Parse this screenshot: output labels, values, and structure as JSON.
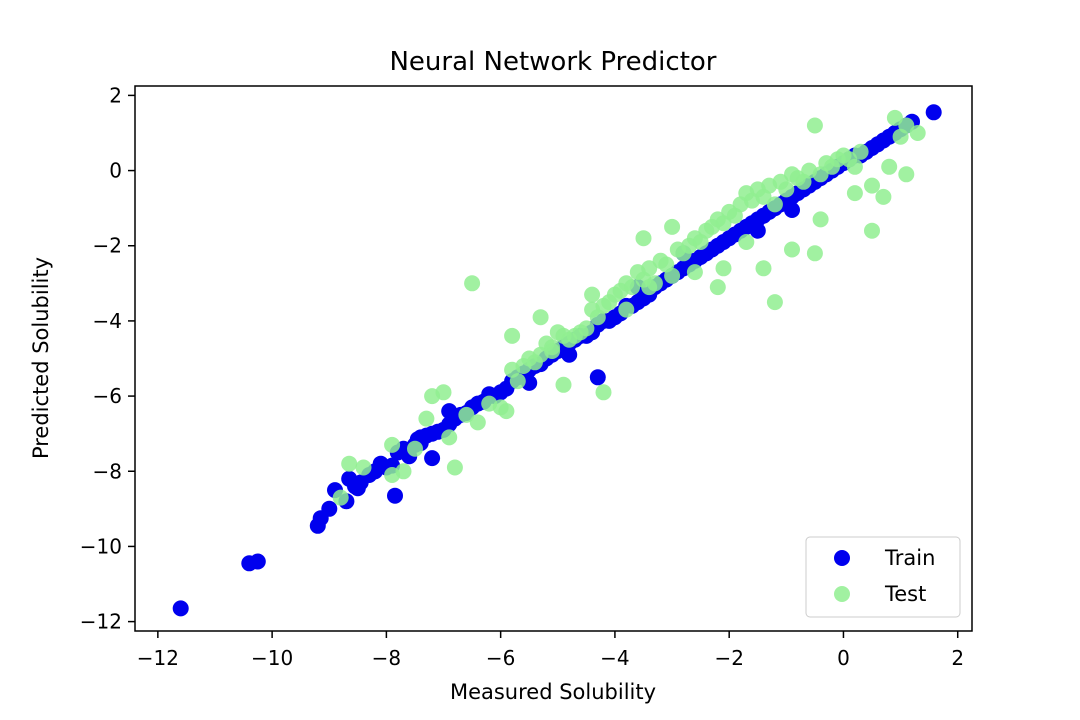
{
  "chart_data": {
    "type": "scatter",
    "title": "Neural Network Predictor",
    "xlabel": "Measured Solubility",
    "ylabel": "Predicted Solubility",
    "xlim": [
      -12.4,
      2.25
    ],
    "ylim": [
      -12.25,
      2.25
    ],
    "xticks": [
      -12,
      -10,
      -8,
      -6,
      -4,
      -2,
      0,
      2
    ],
    "yticks": [
      -12,
      -10,
      -8,
      -6,
      -4,
      -2,
      0,
      2
    ],
    "xtick_labels": [
      "−12",
      "−10",
      "−8",
      "−6",
      "−4",
      "−2",
      "0",
      "2"
    ],
    "ytick_labels": [
      "−12",
      "−10",
      "−8",
      "−6",
      "−4",
      "−2",
      "0",
      "2"
    ],
    "grid": false,
    "legend_position": "bottom-right",
    "series": [
      {
        "name": "Train",
        "color": "#0000ee",
        "x": [
          -11.6,
          -10.4,
          -10.25,
          -9.2,
          -9.15,
          -9.0,
          -8.9,
          -8.7,
          -8.65,
          -8.55,
          -8.5,
          -8.45,
          -8.3,
          -8.2,
          -8.1,
          -8.0,
          -7.9,
          -7.85,
          -7.8,
          -7.7,
          -7.6,
          -7.5,
          -7.45,
          -7.4,
          -7.3,
          -7.2,
          -7.1,
          -7.0,
          -6.9,
          -6.8,
          -6.7,
          -6.6,
          -6.5,
          -6.4,
          -6.3,
          -6.2,
          -6.1,
          -6.0,
          -5.9,
          -5.8,
          -5.7,
          -5.6,
          -5.5,
          -5.4,
          -5.3,
          -5.2,
          -5.1,
          -5.0,
          -4.9,
          -4.8,
          -4.7,
          -4.6,
          -4.5,
          -4.4,
          -4.3,
          -4.2,
          -4.1,
          -4.0,
          -3.9,
          -3.8,
          -3.7,
          -3.6,
          -3.5,
          -3.4,
          -3.3,
          -3.2,
          -3.1,
          -3.0,
          -2.9,
          -2.8,
          -2.7,
          -2.6,
          -2.5,
          -2.4,
          -2.3,
          -2.2,
          -2.1,
          -2.0,
          -1.9,
          -1.8,
          -1.7,
          -1.6,
          -1.5,
          -1.4,
          -1.3,
          -1.2,
          -1.1,
          -1.0,
          -0.9,
          -0.8,
          -0.7,
          -0.6,
          -0.5,
          -0.4,
          -0.3,
          -0.2,
          -0.1,
          0.0,
          0.1,
          0.2,
          0.3,
          0.4,
          0.5,
          0.6,
          0.7,
          0.8,
          0.9,
          1.0,
          1.1,
          1.2,
          1.58,
          -7.2,
          -6.9,
          -4.3,
          -3.6,
          -2.8,
          -4.8,
          -5.5,
          -1.5,
          -0.9,
          -7.4,
          -6.2
        ],
        "y": [
          -11.65,
          -10.45,
          -10.4,
          -9.45,
          -9.25,
          -9.0,
          -8.5,
          -8.8,
          -8.2,
          -8.4,
          -8.45,
          -8.3,
          -8.1,
          -8.0,
          -7.8,
          -7.9,
          -7.85,
          -8.65,
          -7.5,
          -7.4,
          -7.6,
          -7.3,
          -7.15,
          -7.1,
          -7.05,
          -7.0,
          -6.95,
          -6.9,
          -6.75,
          -6.6,
          -6.5,
          -6.45,
          -6.3,
          -6.2,
          -6.15,
          -6.0,
          -6.0,
          -5.9,
          -5.8,
          -5.6,
          -5.5,
          -5.4,
          -5.3,
          -5.2,
          -5.15,
          -5.0,
          -4.9,
          -4.8,
          -4.7,
          -4.6,
          -4.5,
          -4.4,
          -4.4,
          -4.3,
          -4.1,
          -4.0,
          -4.0,
          -3.9,
          -3.8,
          -3.6,
          -3.6,
          -3.5,
          -3.4,
          -3.3,
          -3.1,
          -3.0,
          -2.9,
          -2.8,
          -2.7,
          -2.6,
          -2.5,
          -2.4,
          -2.3,
          -2.2,
          -2.1,
          -2.0,
          -1.9,
          -1.8,
          -1.7,
          -1.6,
          -1.5,
          -1.4,
          -1.3,
          -1.2,
          -1.1,
          -1.0,
          -0.9,
          -0.8,
          -0.7,
          -0.6,
          -0.5,
          -0.4,
          -0.3,
          -0.2,
          -0.1,
          0.0,
          0.1,
          0.2,
          0.3,
          0.4,
          0.4,
          0.5,
          0.6,
          0.7,
          0.8,
          0.9,
          1.0,
          1.1,
          1.2,
          1.3,
          1.55,
          -7.65,
          -6.4,
          -5.5,
          -3.1,
          -2.2,
          -4.9,
          -5.65,
          -1.6,
          -1.05,
          -7.25,
          -5.95
        ]
      },
      {
        "name": "Test",
        "color": "#90ee90",
        "x": [
          -8.8,
          -8.65,
          -8.4,
          -7.9,
          -7.7,
          -7.5,
          -7.3,
          -7.2,
          -7.0,
          -6.8,
          -6.6,
          -6.4,
          -6.2,
          -6.0,
          -5.9,
          -5.8,
          -5.7,
          -5.6,
          -5.5,
          -5.4,
          -5.3,
          -5.2,
          -5.1,
          -5.0,
          -4.9,
          -4.8,
          -4.7,
          -4.6,
          -4.5,
          -4.4,
          -4.3,
          -4.2,
          -4.1,
          -4.0,
          -3.9,
          -3.8,
          -3.7,
          -3.6,
          -3.5,
          -3.4,
          -3.3,
          -3.2,
          -3.1,
          -3.0,
          -2.9,
          -2.8,
          -2.7,
          -2.6,
          -2.5,
          -2.4,
          -2.3,
          -2.2,
          -2.1,
          -2.0,
          -1.9,
          -1.8,
          -1.7,
          -1.6,
          -1.5,
          -1.4,
          -1.3,
          -1.2,
          -1.1,
          -1.0,
          -0.9,
          -0.8,
          -0.7,
          -0.6,
          -0.5,
          -0.4,
          -0.3,
          -0.2,
          -0.1,
          0.0,
          0.1,
          0.2,
          0.3,
          0.5,
          0.7,
          0.9,
          1.0,
          1.1,
          1.3,
          -6.5,
          -5.8,
          -4.9,
          -4.2,
          -3.4,
          -2.6,
          -2.2,
          -1.2,
          -0.9,
          -0.5,
          0.5,
          0.8,
          1.1,
          -7.9,
          -6.9,
          -5.3,
          -4.4,
          -3.5,
          -2.1,
          -1.4,
          -0.4,
          0.2,
          -3.0,
          -1.7,
          -5.1,
          -3.8
        ],
        "y": [
          -8.7,
          -7.8,
          -7.9,
          -7.3,
          -8.0,
          -7.4,
          -6.6,
          -6.0,
          -5.9,
          -7.9,
          -6.5,
          -6.7,
          -6.2,
          -6.3,
          -6.4,
          -5.3,
          -5.6,
          -5.2,
          -5.0,
          -5.1,
          -4.9,
          -4.6,
          -4.7,
          -4.3,
          -4.4,
          -4.5,
          -4.4,
          -4.3,
          -4.2,
          -3.7,
          -3.9,
          -3.6,
          -3.5,
          -3.3,
          -3.2,
          -3.0,
          -3.1,
          -2.7,
          -2.9,
          -2.6,
          -3.0,
          -2.4,
          -2.5,
          -2.8,
          -2.1,
          -2.2,
          -2.0,
          -1.8,
          -1.9,
          -1.6,
          -1.5,
          -1.3,
          -1.4,
          -1.1,
          -1.2,
          -0.9,
          -0.6,
          -0.8,
          -0.5,
          -0.7,
          -0.4,
          -0.9,
          -0.3,
          -0.5,
          -0.1,
          -0.2,
          -0.3,
          0.0,
          1.2,
          -0.1,
          0.2,
          0.1,
          0.3,
          0.4,
          0.3,
          0.1,
          0.5,
          -0.4,
          -0.7,
          1.4,
          0.9,
          1.2,
          1.0,
          -3.0,
          -4.4,
          -5.7,
          -5.9,
          -3.1,
          -2.7,
          -3.1,
          -3.5,
          -2.1,
          -2.2,
          -1.6,
          0.1,
          -0.1,
          -8.1,
          -7.1,
          -3.9,
          -3.3,
          -1.8,
          -2.6,
          -2.6,
          -1.3,
          -0.6,
          -1.5,
          -1.9,
          -4.8,
          -3.7
        ]
      }
    ]
  }
}
